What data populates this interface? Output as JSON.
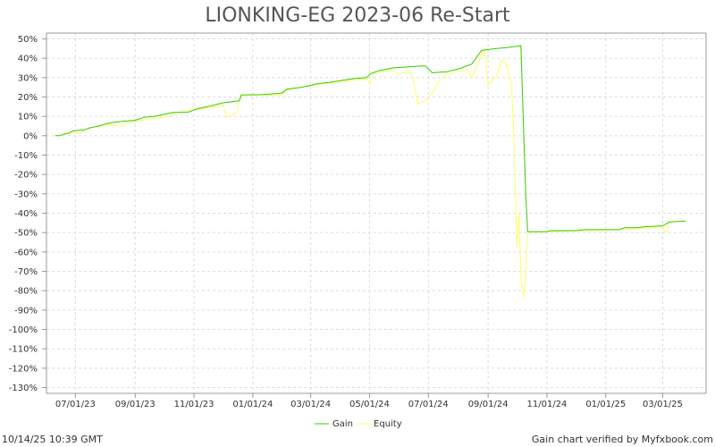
{
  "chart_data": {
    "type": "line",
    "title": "LIONKING-EG 2023-06 Re-Start",
    "xlabel": "",
    "ylabel": "",
    "ylim": [
      -133,
      53
    ],
    "xlim": [
      "2023-06-01",
      "2025-04-15"
    ],
    "y_ticks": [
      50,
      40,
      30,
      20,
      10,
      0,
      -10,
      -20,
      -30,
      -40,
      -50,
      -60,
      -70,
      -80,
      -90,
      -100,
      -110,
      -120,
      -130
    ],
    "y_tick_suffix": "%",
    "x_ticks": [
      {
        "date": "2023-07-01",
        "label": "07/01/23"
      },
      {
        "date": "2023-09-01",
        "label": "09/01/23"
      },
      {
        "date": "2023-11-01",
        "label": "11/01/23"
      },
      {
        "date": "2024-01-01",
        "label": "01/01/24"
      },
      {
        "date": "2024-03-01",
        "label": "03/01/24"
      },
      {
        "date": "2024-05-01",
        "label": "05/01/24"
      },
      {
        "date": "2024-07-01",
        "label": "07/01/24"
      },
      {
        "date": "2024-09-01",
        "label": "09/01/24"
      },
      {
        "date": "2024-11-01",
        "label": "11/01/24"
      },
      {
        "date": "2025-01-01",
        "label": "01/01/25"
      },
      {
        "date": "2025-03-01",
        "label": "03/01/25"
      }
    ],
    "grid": true,
    "legend_position": "bottom-center",
    "series": [
      {
        "name": "Gain",
        "color": "#33cc00",
        "points": [
          [
            "2023-06-10",
            0
          ],
          [
            "2023-06-15",
            0
          ],
          [
            "2023-06-20",
            1
          ],
          [
            "2023-06-25",
            1.5
          ],
          [
            "2023-06-28",
            2.5
          ],
          [
            "2023-07-10",
            3
          ],
          [
            "2023-07-15",
            4
          ],
          [
            "2023-07-25",
            5
          ],
          [
            "2023-08-01",
            6
          ],
          [
            "2023-08-10",
            7
          ],
          [
            "2023-08-20",
            7.5
          ],
          [
            "2023-09-01",
            8
          ],
          [
            "2023-09-10",
            9.5
          ],
          [
            "2023-09-20",
            10
          ],
          [
            "2023-10-01",
            11
          ],
          [
            "2023-10-10",
            12
          ],
          [
            "2023-10-25",
            12
          ],
          [
            "2023-11-05",
            14
          ],
          [
            "2023-11-15",
            15
          ],
          [
            "2023-12-01",
            17
          ],
          [
            "2023-12-10",
            17.5
          ],
          [
            "2023-12-18",
            18
          ],
          [
            "2023-12-20",
            21
          ],
          [
            "2024-01-10",
            21.2
          ],
          [
            "2024-01-31",
            22
          ],
          [
            "2024-02-05",
            24
          ],
          [
            "2024-02-20",
            25
          ],
          [
            "2024-03-01",
            26
          ],
          [
            "2024-03-10",
            27
          ],
          [
            "2024-03-20",
            27.5
          ],
          [
            "2024-04-01",
            28.5
          ],
          [
            "2024-04-15",
            29.5
          ],
          [
            "2024-04-28",
            30
          ],
          [
            "2024-05-02",
            32
          ],
          [
            "2024-05-10",
            33.5
          ],
          [
            "2024-05-25",
            35
          ],
          [
            "2024-06-10",
            35.5
          ],
          [
            "2024-06-25",
            36
          ],
          [
            "2024-06-28",
            36
          ],
          [
            "2024-07-05",
            32.5
          ],
          [
            "2024-07-20",
            33
          ],
          [
            "2024-08-01",
            34.5
          ],
          [
            "2024-08-15",
            37
          ],
          [
            "2024-08-25",
            44
          ],
          [
            "2024-09-01",
            44.5
          ],
          [
            "2024-09-10",
            45
          ],
          [
            "2024-09-20",
            45.5
          ],
          [
            "2024-10-05",
            46.5
          ],
          [
            "2024-10-10",
            -30
          ],
          [
            "2024-10-12",
            -49.5
          ],
          [
            "2024-11-01",
            -49.5
          ],
          [
            "2024-11-05",
            -49
          ],
          [
            "2024-12-01",
            -49
          ],
          [
            "2024-12-10",
            -48.5
          ],
          [
            "2025-01-15",
            -48.5
          ],
          [
            "2025-01-20",
            -47.5
          ],
          [
            "2025-02-01",
            -47.5
          ],
          [
            "2025-02-10",
            -47
          ],
          [
            "2025-03-01",
            -46.5
          ],
          [
            "2025-03-08",
            -44.5
          ],
          [
            "2025-03-25",
            -44
          ]
        ]
      },
      {
        "name": "Equity",
        "color": "#ffff66",
        "points": [
          [
            "2023-06-10",
            0
          ],
          [
            "2023-06-20",
            0.5
          ],
          [
            "2023-06-28",
            2
          ],
          [
            "2023-07-05",
            1
          ],
          [
            "2023-07-10",
            3
          ],
          [
            "2023-07-20",
            4.5
          ],
          [
            "2023-08-05",
            5.5
          ],
          [
            "2023-08-20",
            5
          ],
          [
            "2023-08-25",
            7
          ],
          [
            "2023-09-01",
            7.5
          ],
          [
            "2023-09-20",
            9
          ],
          [
            "2023-10-01",
            9.5
          ],
          [
            "2023-10-15",
            12
          ],
          [
            "2023-11-05",
            13.5
          ],
          [
            "2023-12-01",
            16
          ],
          [
            "2023-12-05",
            9.5
          ],
          [
            "2023-12-15",
            12
          ],
          [
            "2023-12-20",
            21
          ],
          [
            "2024-01-15",
            21
          ],
          [
            "2024-01-31",
            21
          ],
          [
            "2024-02-05",
            23.5
          ],
          [
            "2024-03-01",
            26
          ],
          [
            "2024-04-01",
            28
          ],
          [
            "2024-04-28",
            29.5
          ],
          [
            "2024-05-02",
            27
          ],
          [
            "2024-05-05",
            32
          ],
          [
            "2024-05-15",
            33
          ],
          [
            "2024-05-25",
            34
          ],
          [
            "2024-06-01",
            31.5
          ],
          [
            "2024-06-10",
            34
          ],
          [
            "2024-06-15",
            30
          ],
          [
            "2024-06-20",
            16.5
          ],
          [
            "2024-06-28",
            18
          ],
          [
            "2024-07-05",
            22
          ],
          [
            "2024-07-12",
            28
          ],
          [
            "2024-07-20",
            32
          ],
          [
            "2024-08-10",
            34
          ],
          [
            "2024-08-15",
            30
          ],
          [
            "2024-08-22",
            38
          ],
          [
            "2024-08-28",
            45
          ],
          [
            "2024-09-01",
            26
          ],
          [
            "2024-09-10",
            31
          ],
          [
            "2024-09-15",
            39
          ],
          [
            "2024-09-20",
            37
          ],
          [
            "2024-09-25",
            27
          ],
          [
            "2024-09-27",
            10
          ],
          [
            "2024-10-01",
            -57
          ],
          [
            "2024-10-03",
            -40
          ],
          [
            "2024-10-05",
            -72
          ],
          [
            "2024-10-08",
            -83
          ],
          [
            "2024-10-10",
            -70
          ],
          [
            "2024-10-12",
            -49.5
          ],
          [
            "2024-11-01",
            -49.5
          ],
          [
            "2025-01-15",
            -48.5
          ],
          [
            "2025-03-01",
            -47
          ],
          [
            "2025-03-05",
            -50
          ],
          [
            "2025-03-08",
            -44.5
          ],
          [
            "2025-03-25",
            -44
          ]
        ]
      }
    ]
  },
  "footer": {
    "timestamp": "10/14/25 10:39 GMT",
    "verified": "Gain chart verified by Myfxbook.com"
  }
}
